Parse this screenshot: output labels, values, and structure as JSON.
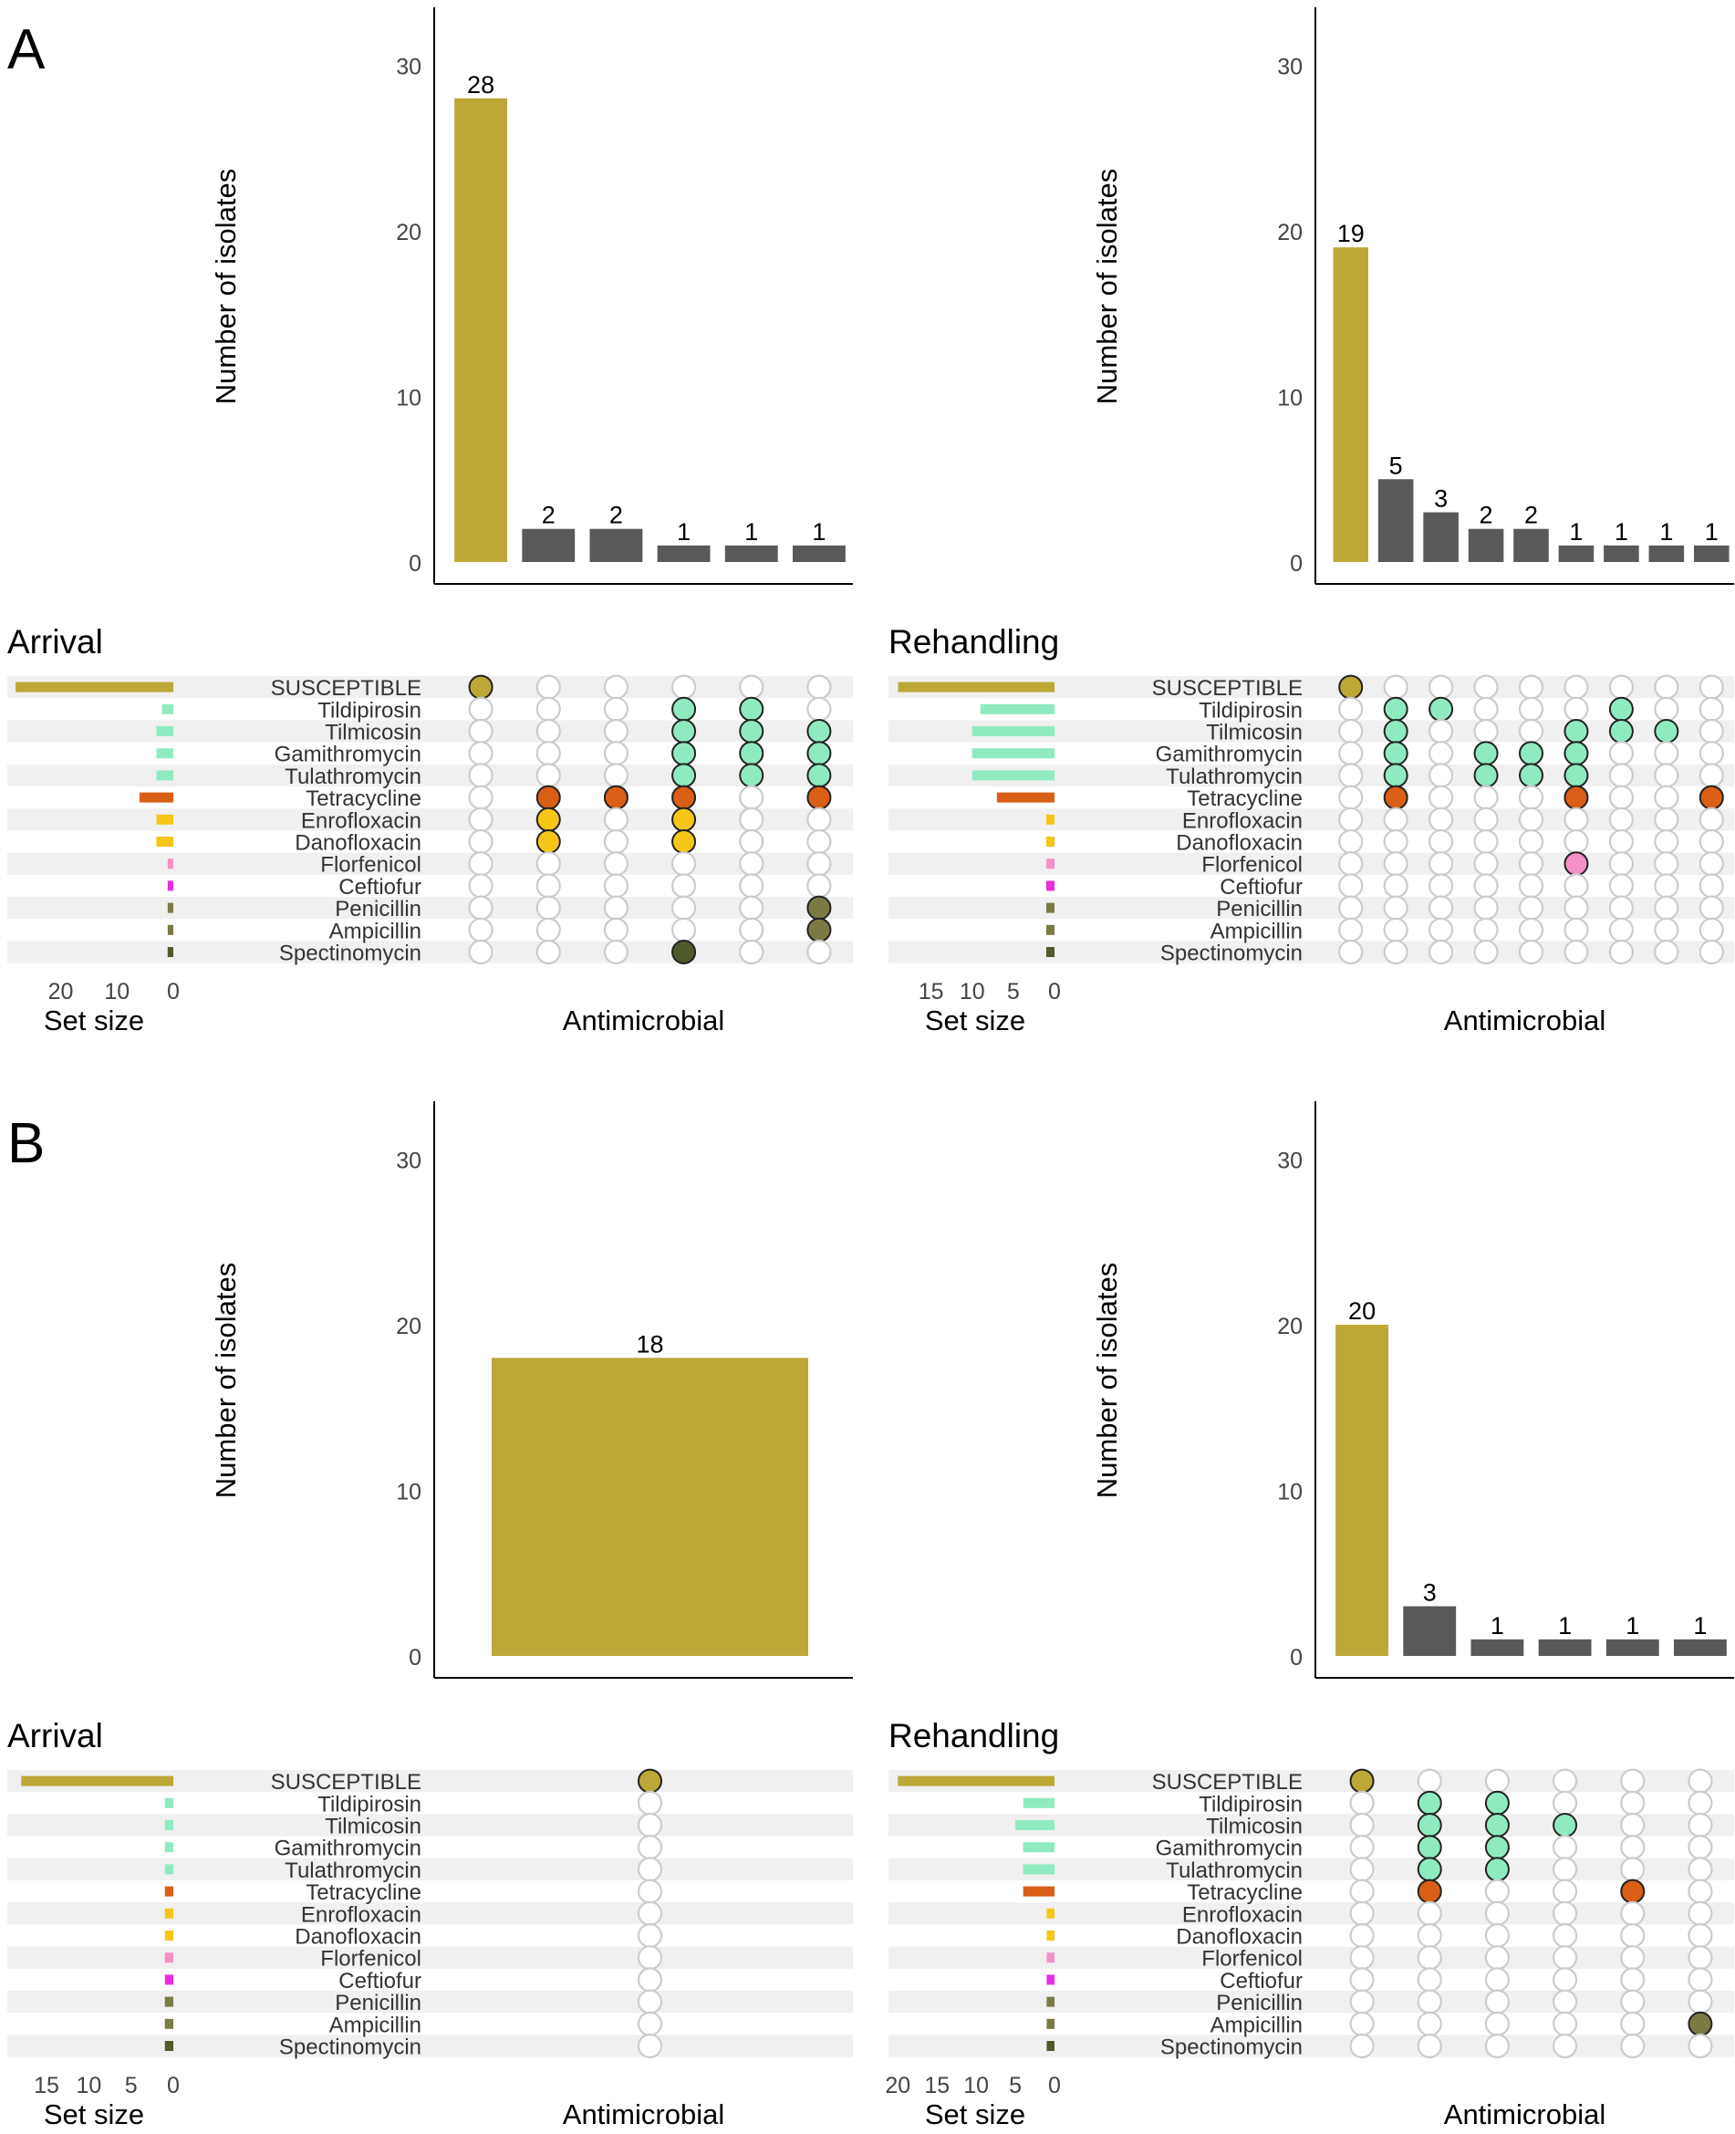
{
  "panels": [
    {
      "letter": "A",
      "groups": [
        {
          "title": "Arrival"
        },
        {
          "title": "Rehandling"
        }
      ]
    },
    {
      "letter": "B",
      "groups": [
        {
          "title": "Arrival"
        },
        {
          "title": "Rehandling"
        }
      ]
    }
  ],
  "colors": {
    "susceptible": "#BDA737",
    "intersection_bar": "#595959",
    "macrolide": "#8FEBBF",
    "tetracycline": "#D95F16",
    "fluoroquinolone": "#F5C518",
    "florfenicol": "#F48FC7",
    "ceftiofur": "#E72DE0",
    "betalactam": "#7C7A44",
    "spectinomycin": "#4F5A2B",
    "stripe": "#F0F0F0",
    "empty_dot_stroke": "#CCCCCC"
  },
  "chart_data": [
    {
      "type": "upset",
      "panel": "A",
      "group": "Arrival",
      "ylabel": "Number of isolates",
      "xlabel": "Antimicrobial",
      "set_size_label": "Set size",
      "ylim": [
        0,
        33
      ],
      "yticks": [
        0,
        10,
        20,
        30
      ],
      "set_size_ticks": [
        20,
        10,
        0
      ],
      "set_size_max": 28.5,
      "sets": [
        "SUSCEPTIBLE",
        "Tildipirosin",
        "Tilmicosin",
        "Gamithromycin",
        "Tulathromycin",
        "Tetracycline",
        "Enrofloxacin",
        "Danofloxacin",
        "Florfenicol",
        "Ceftiofur",
        "Penicillin",
        "Ampicillin",
        "Spectinomycin"
      ],
      "set_sizes": [
        28,
        2,
        3,
        3,
        3,
        6,
        3,
        3,
        1,
        1,
        1,
        1,
        1
      ],
      "intersections": [
        {
          "count": 28,
          "members": [
            "SUSCEPTIBLE"
          ]
        },
        {
          "count": 2,
          "members": [
            "Tetracycline",
            "Enrofloxacin",
            "Danofloxacin"
          ]
        },
        {
          "count": 2,
          "members": [
            "Tetracycline"
          ]
        },
        {
          "count": 1,
          "members": [
            "Tildipirosin",
            "Tilmicosin",
            "Gamithromycin",
            "Tulathromycin",
            "Tetracycline",
            "Enrofloxacin",
            "Danofloxacin",
            "Spectinomycin"
          ]
        },
        {
          "count": 1,
          "members": [
            "Tildipirosin",
            "Tilmicosin",
            "Gamithromycin",
            "Tulathromycin"
          ]
        },
        {
          "count": 1,
          "members": [
            "Tilmicosin",
            "Gamithromycin",
            "Tulathromycin",
            "Tetracycline",
            "Penicillin",
            "Ampicillin"
          ]
        }
      ]
    },
    {
      "type": "upset",
      "panel": "A",
      "group": "Rehandling",
      "ylabel": "Number of isolates",
      "xlabel": "Antimicrobial",
      "set_size_label": "Set size",
      "ylim": [
        0,
        33
      ],
      "yticks": [
        0,
        10,
        20,
        30
      ],
      "set_size_ticks": [
        15,
        10,
        5,
        0
      ],
      "set_size_max": 19.5,
      "sets": [
        "SUSCEPTIBLE",
        "Tildipirosin",
        "Tilmicosin",
        "Gamithromycin",
        "Tulathromycin",
        "Tetracycline",
        "Enrofloxacin",
        "Danofloxacin",
        "Florfenicol",
        "Ceftiofur",
        "Penicillin",
        "Ampicillin",
        "Spectinomycin"
      ],
      "set_sizes": [
        19,
        9,
        10,
        10,
        10,
        7,
        1,
        1,
        1,
        1,
        1,
        1,
        1
      ],
      "intersections": [
        {
          "count": 19,
          "members": [
            "SUSCEPTIBLE"
          ]
        },
        {
          "count": 5,
          "members": [
            "Tildipirosin",
            "Tilmicosin",
            "Gamithromycin",
            "Tulathromycin",
            "Tetracycline"
          ]
        },
        {
          "count": 3,
          "members": [
            "Tildipirosin"
          ]
        },
        {
          "count": 2,
          "members": [
            "Gamithromycin",
            "Tulathromycin"
          ]
        },
        {
          "count": 2,
          "members": [
            "Gamithromycin",
            "Tulathromycin"
          ]
        },
        {
          "count": 1,
          "members": [
            "Tilmicosin",
            "Gamithromycin",
            "Tulathromycin",
            "Tetracycline",
            "Florfenicol"
          ]
        },
        {
          "count": 1,
          "members": [
            "Tildipirosin",
            "Tilmicosin"
          ]
        },
        {
          "count": 1,
          "members": [
            "Tilmicosin"
          ]
        },
        {
          "count": 1,
          "members": [
            "Tetracycline"
          ]
        }
      ]
    },
    {
      "type": "upset",
      "panel": "B",
      "group": "Arrival",
      "ylabel": "Number of isolates",
      "xlabel": "Antimicrobial",
      "set_size_label": "Set size",
      "ylim": [
        0,
        33
      ],
      "yticks": [
        0,
        10,
        20,
        30
      ],
      "set_size_ticks": [
        15,
        10,
        5,
        0
      ],
      "set_size_max": 19,
      "sets": [
        "SUSCEPTIBLE",
        "Tildipirosin",
        "Tilmicosin",
        "Gamithromycin",
        "Tulathromycin",
        "Tetracycline",
        "Enrofloxacin",
        "Danofloxacin",
        "Florfenicol",
        "Ceftiofur",
        "Penicillin",
        "Ampicillin",
        "Spectinomycin"
      ],
      "set_sizes": [
        18,
        1,
        1,
        1,
        1,
        1,
        1,
        1,
        1,
        1,
        1,
        1,
        1
      ],
      "intersections": [
        {
          "count": 18,
          "members": [
            "SUSCEPTIBLE"
          ]
        }
      ]
    },
    {
      "type": "upset",
      "panel": "B",
      "group": "Rehandling",
      "ylabel": "Number of isolates",
      "xlabel": "Antimicrobial",
      "set_size_label": "Set size",
      "ylim": [
        0,
        33
      ],
      "yticks": [
        0,
        10,
        20,
        30
      ],
      "set_size_ticks": [
        20,
        15,
        10,
        5,
        0
      ],
      "set_size_max": 20.5,
      "sets": [
        "SUSCEPTIBLE",
        "Tildipirosin",
        "Tilmicosin",
        "Gamithromycin",
        "Tulathromycin",
        "Tetracycline",
        "Enrofloxacin",
        "Danofloxacin",
        "Florfenicol",
        "Ceftiofur",
        "Penicillin",
        "Ampicillin",
        "Spectinomycin"
      ],
      "set_sizes": [
        20,
        4,
        5,
        4,
        4,
        4,
        1,
        1,
        1,
        1,
        1,
        1,
        1
      ],
      "intersections": [
        {
          "count": 20,
          "members": [
            "SUSCEPTIBLE"
          ]
        },
        {
          "count": 3,
          "members": [
            "Tildipirosin",
            "Tilmicosin",
            "Gamithromycin",
            "Tulathromycin",
            "Tetracycline"
          ]
        },
        {
          "count": 1,
          "members": [
            "Tildipirosin",
            "Tilmicosin",
            "Gamithromycin",
            "Tulathromycin"
          ]
        },
        {
          "count": 1,
          "members": [
            "Tilmicosin"
          ]
        },
        {
          "count": 1,
          "members": [
            "Tetracycline"
          ]
        },
        {
          "count": 1,
          "members": [
            "Ampicillin"
          ]
        }
      ]
    }
  ]
}
